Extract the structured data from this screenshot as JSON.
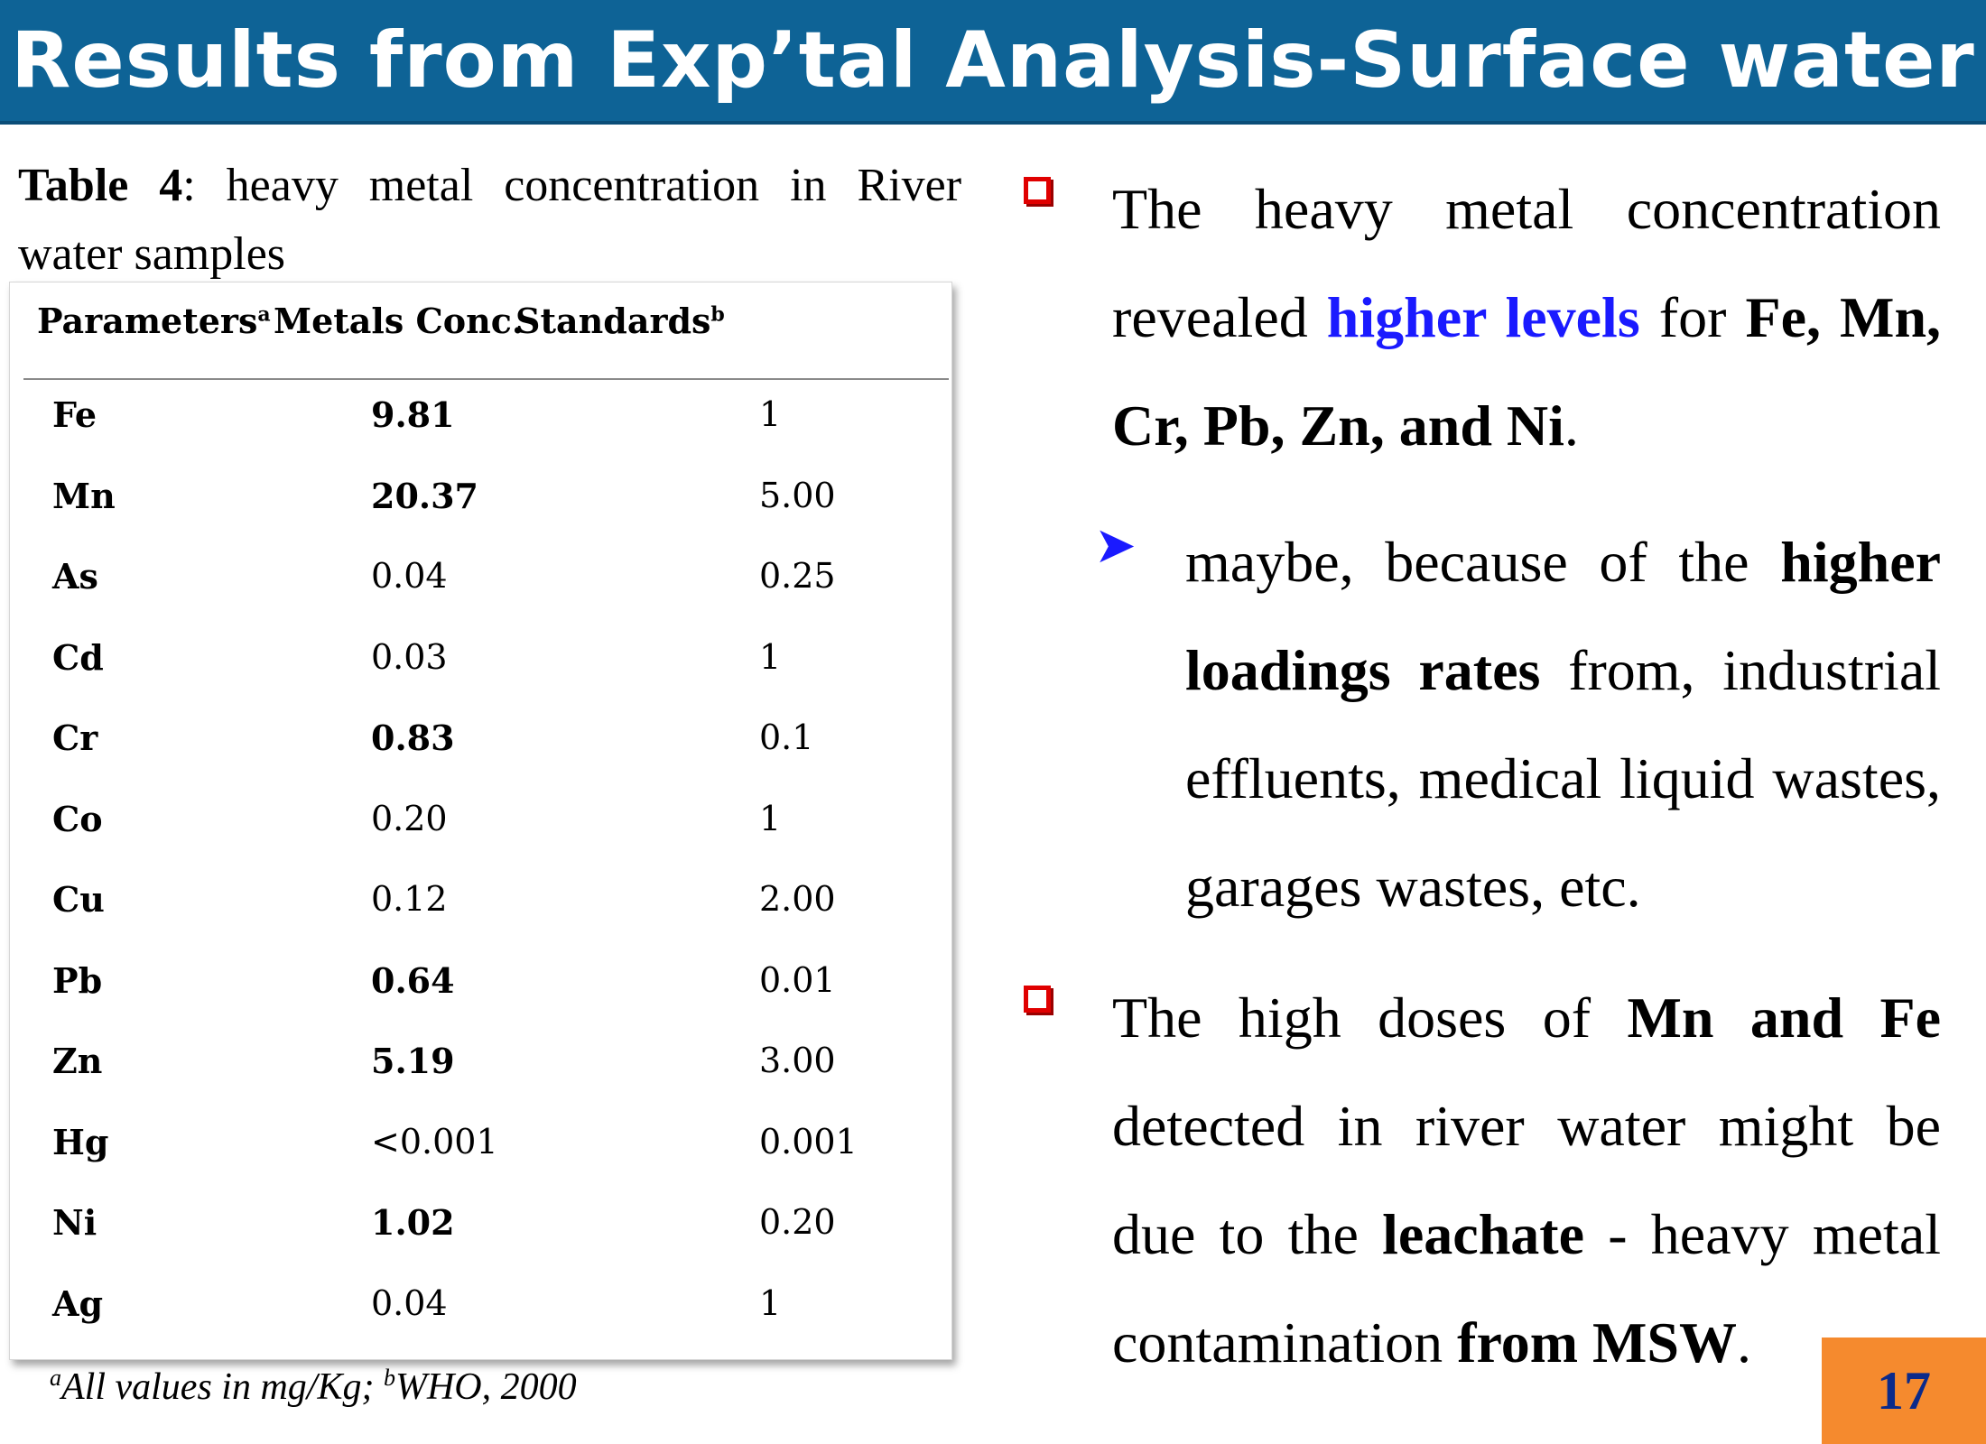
{
  "title": "Results from Exp’tal Analysis-Surface water",
  "table_caption": {
    "label": "Table 4",
    "text": ": heavy metal concentration in River water samples"
  },
  "table": {
    "headers": {
      "parameters": "Parameters",
      "parameters_sup": "a",
      "conc": "Metals Conc.",
      "standards": "Standards",
      "standards_sup": "b"
    },
    "rows": [
      {
        "param": "Fe",
        "conc": "9.81",
        "std": "1",
        "bold": true
      },
      {
        "param": "Mn",
        "conc": "20.37",
        "std": "5.00",
        "bold": true
      },
      {
        "param": "As",
        "conc": "0.04",
        "std": "0.25",
        "bold": false
      },
      {
        "param": "Cd",
        "conc": "0.03",
        "std": "1",
        "bold": false
      },
      {
        "param": "Cr",
        "conc": "0.83",
        "std": "0.1",
        "bold": true
      },
      {
        "param": "Co",
        "conc": "0.20",
        "std": "1",
        "bold": false
      },
      {
        "param": "Cu",
        "conc": "0.12",
        "std": "2.00",
        "bold": false
      },
      {
        "param": "Pb",
        "conc": "0.64",
        "std": "0.01",
        "bold": true
      },
      {
        "param": "Zn",
        "conc": "5.19",
        "std": "3.00",
        "bold": true
      },
      {
        "param": "Hg",
        "conc": "<0.001",
        "std": "0.001",
        "bold": false
      },
      {
        "param": "Ni",
        "conc": "1.02",
        "std": "0.20",
        "bold": true
      },
      {
        "param": "Ag",
        "conc": "0.04",
        "std": "1",
        "bold": false
      }
    ]
  },
  "footnote": {
    "sup_a": "a",
    "text_a": "All values in mg/Kg; ",
    "sup_b": "b",
    "text_b": "WHO, 2000"
  },
  "bullet1": {
    "t1": "The heavy metal concentration revealed ",
    "highlight": "higher levels",
    "t2": " for ",
    "bold": "Fe, Mn, Cr, Pb, Zn, and Ni",
    "t3": "."
  },
  "sub_bullet": {
    "t1": "maybe, because of the ",
    "bold": "higher loadings rates",
    "t2": " from, industrial effluents, medical liquid wastes, garages wastes, etc."
  },
  "bullet2": {
    "t1": "The high doses of ",
    "bold1": "Mn and Fe",
    "t2": " detected in river water might be due to the ",
    "bold2": "leachate",
    "t3": " - heavy metal contamination ",
    "bold3": "from MSW",
    "t4": "."
  },
  "page_number": "17",
  "colors": {
    "title_bar": "#0e6396",
    "bullet_square": "#e00000",
    "highlight_blue": "#1a1aff",
    "page_badge": "#f58a2e"
  },
  "icons": {
    "bullet": "square-bullet-icon",
    "sub_bullet": "arrowhead-bullet-icon"
  }
}
